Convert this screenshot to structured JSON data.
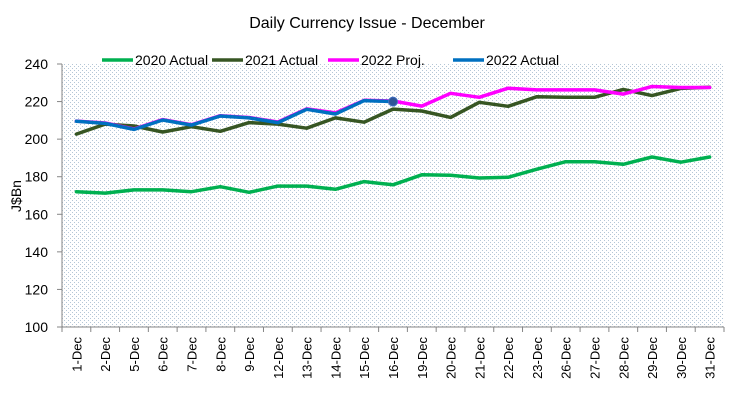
{
  "chart_data": {
    "type": "line",
    "title": "Daily Currency Issue -  December",
    "xlabel": "",
    "ylabel": "J$Bn",
    "ylim": [
      100,
      240
    ],
    "yticks": [
      100,
      120,
      140,
      160,
      180,
      200,
      220,
      240
    ],
    "grid": false,
    "legend_position": "top-center",
    "categories": [
      "1-Dec",
      "2-Dec",
      "5-Dec",
      "6-Dec",
      "7-Dec",
      "8-Dec",
      "9-Dec",
      "12-Dec",
      "13-Dec",
      "14-Dec",
      "15-Dec",
      "16-Dec",
      "19-Dec",
      "20-Dec",
      "21-Dec",
      "22-Dec",
      "23-Dec",
      "26-Dec",
      "27-Dec",
      "28-Dec",
      "29-Dec",
      "30-Dec",
      "31-Dec"
    ],
    "series": [
      {
        "name": "2020 Actual",
        "color": "#00b050",
        "values": [
          172.0,
          171.3,
          173.0,
          173.0,
          172.0,
          174.7,
          171.7,
          175.0,
          175.0,
          173.3,
          177.4,
          175.7,
          181.0,
          180.8,
          179.3,
          179.7,
          184.0,
          188.0,
          188.0,
          186.6,
          190.5,
          187.7,
          190.5
        ]
      },
      {
        "name": "2021 Actual",
        "color": "#375623",
        "values": [
          202.7,
          208.0,
          207.0,
          203.8,
          206.6,
          204.2,
          208.8,
          208.0,
          205.8,
          211.3,
          209.0,
          216.0,
          215.0,
          211.6,
          219.6,
          217.5,
          222.6,
          222.3,
          222.3,
          226.5,
          223.2,
          227.0,
          227.6
        ]
      },
      {
        "name": "2022 Proj.",
        "color": "#ff00ff",
        "values": [
          209.6,
          208.6,
          205.4,
          210.4,
          207.7,
          212.5,
          211.5,
          209.1,
          216.1,
          214.0,
          220.7,
          220.3,
          217.6,
          224.4,
          222.3,
          227.1,
          226.2,
          226.2,
          226.2,
          224.0,
          228.0,
          227.5,
          227.5
        ]
      },
      {
        "name": "2022 Actual",
        "color": "#0070c0",
        "values": [
          209.5,
          208.4,
          205.2,
          210.2,
          207.5,
          212.3,
          211.3,
          208.8,
          215.9,
          213.4,
          220.5,
          220.0,
          null,
          null,
          null,
          null,
          null,
          null,
          null,
          null,
          null,
          null,
          null
        ],
        "end_marker": true
      }
    ]
  }
}
